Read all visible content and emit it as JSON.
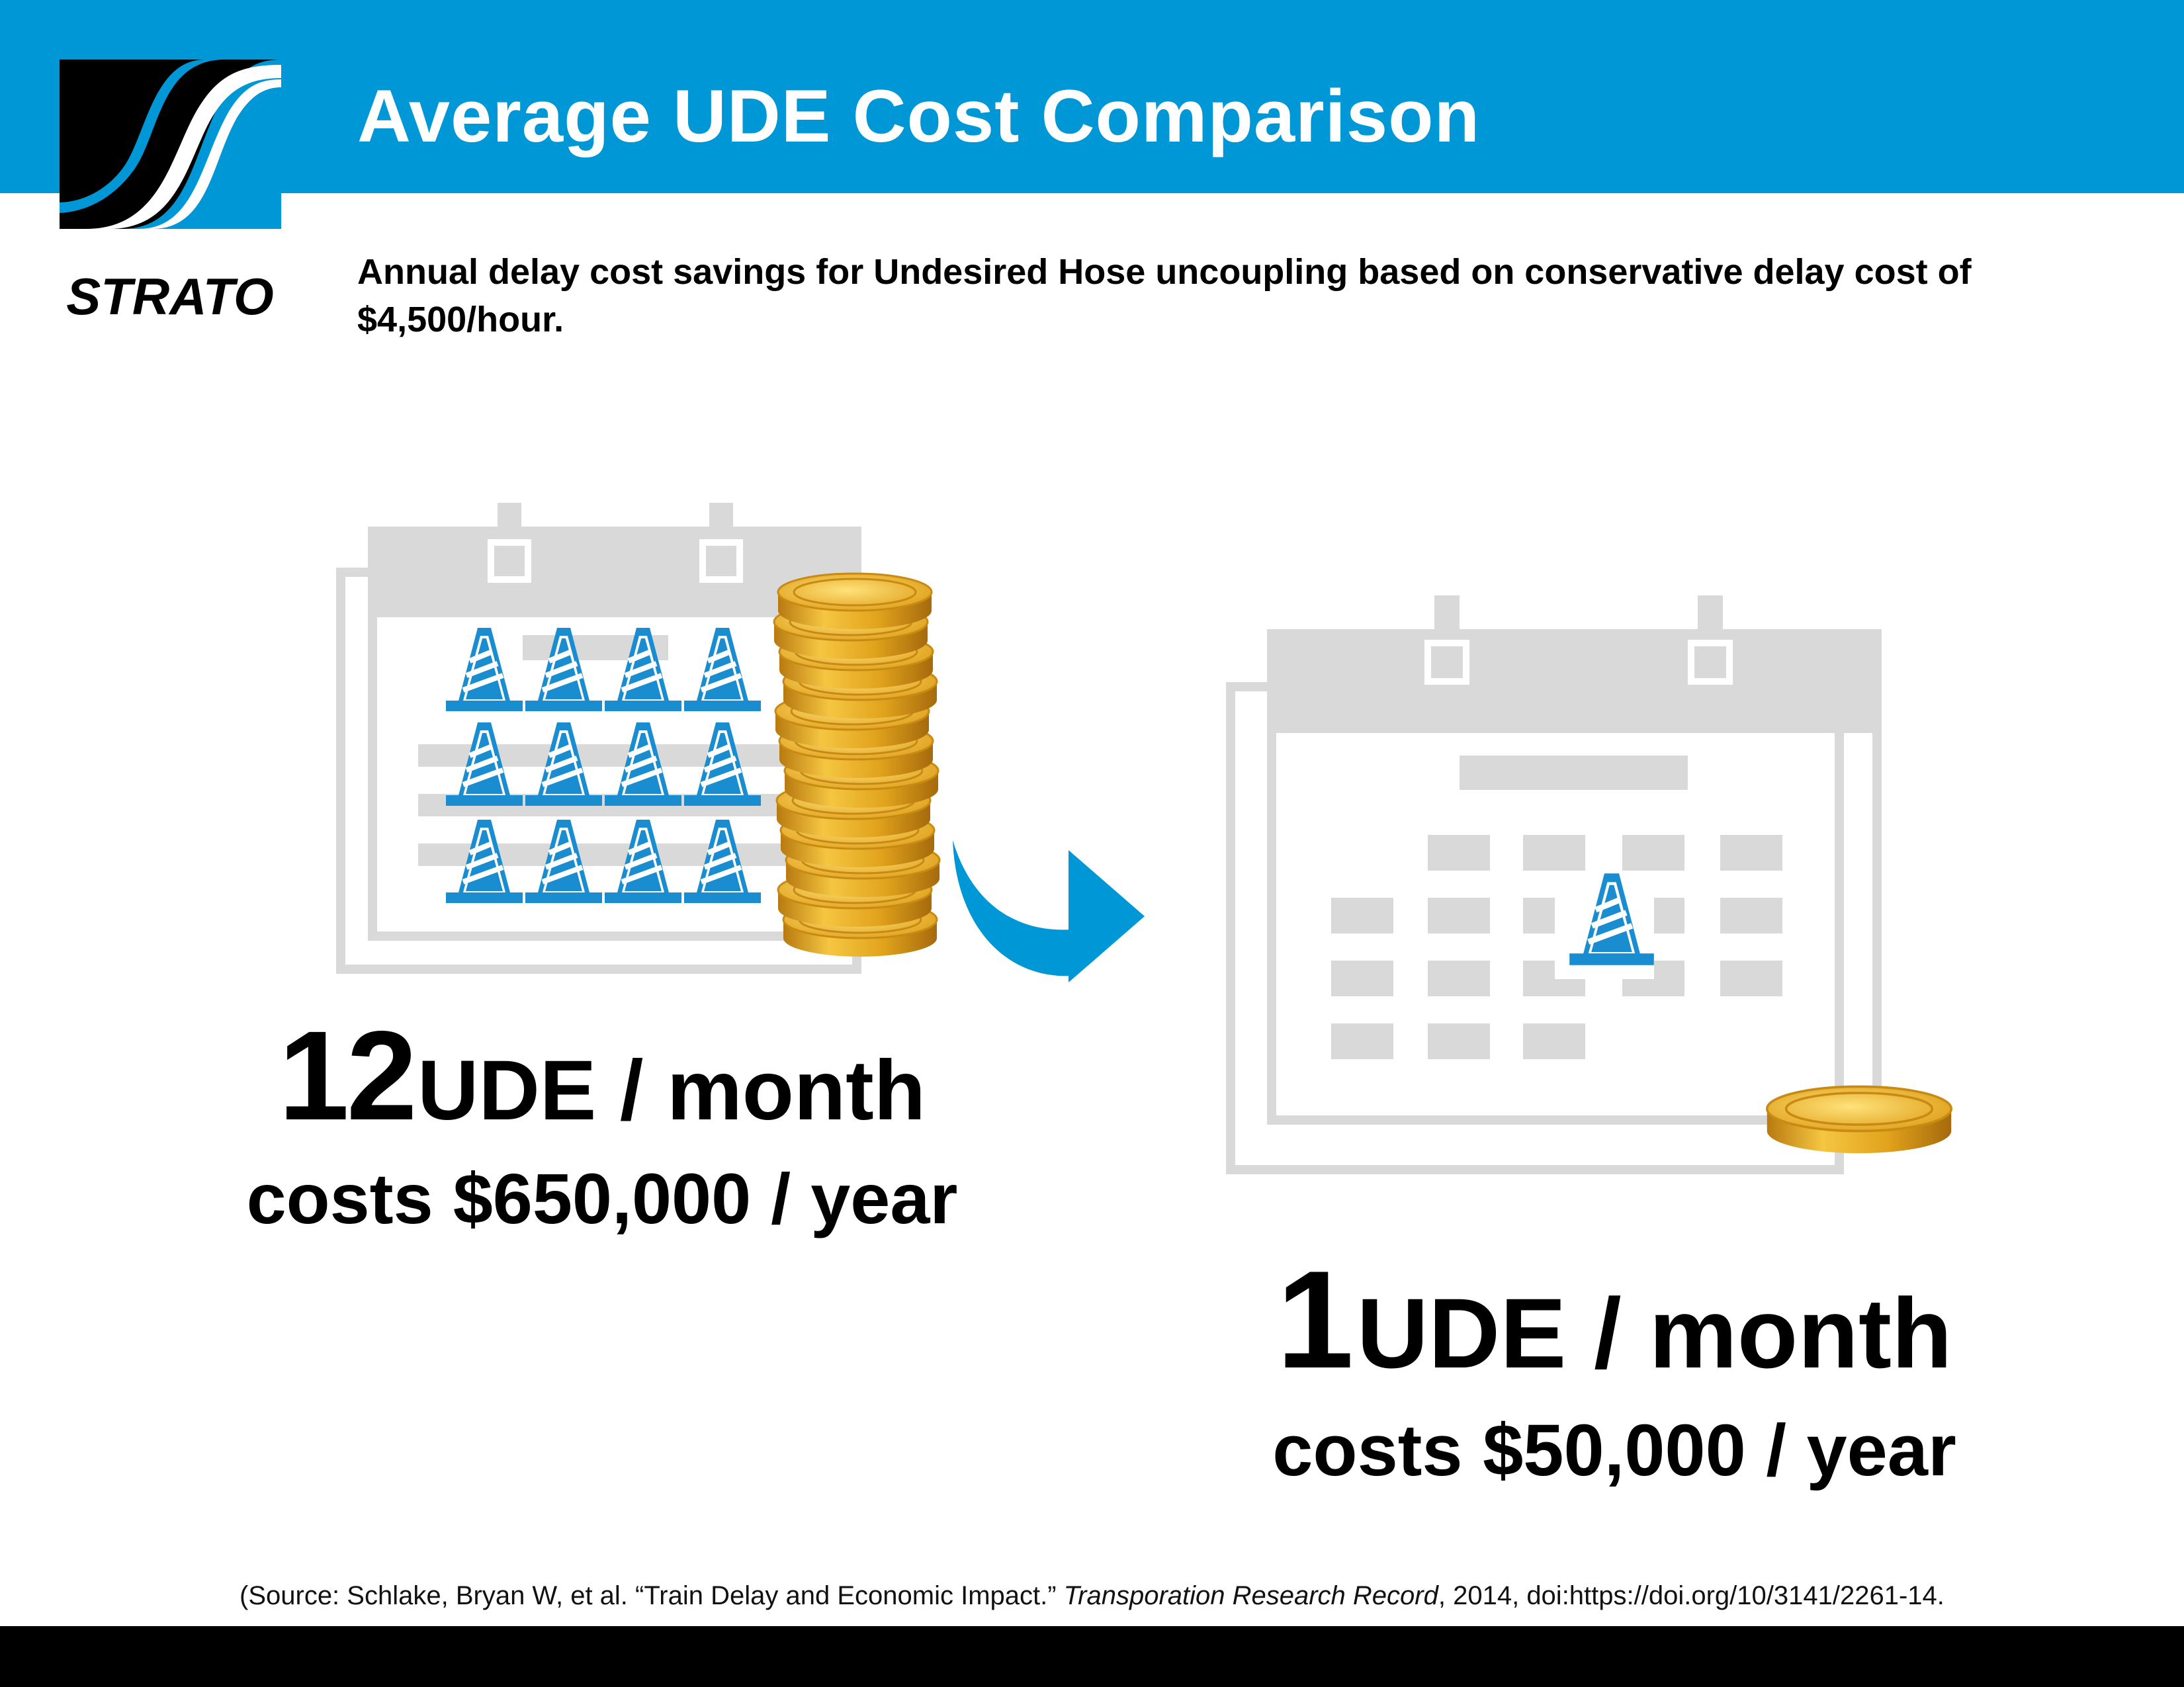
{
  "header": {
    "title": "Average UDE Cost Comparison",
    "background_color": "#0097D6"
  },
  "logo": {
    "wordmark": "STRATO",
    "icon": "strato-s-logo"
  },
  "subtitle": "Annual delay cost savings for Undesired Hose uncoupling based on conservative delay cost of $4,500/hour.",
  "before": {
    "count": "12",
    "unit": "UDE / month",
    "cost": "costs $650,000 / year",
    "cone_count": 12,
    "icon": "calendar-icon",
    "cone_icon": "traffic-cone-icon",
    "coins_icon": "coin-stack-icon"
  },
  "arrow_icon": "curved-arrow-right-icon",
  "after": {
    "count": "1",
    "unit": "UDE / month",
    "cost": "costs $50,000 / year",
    "cone_count": 1,
    "icon": "calendar-icon",
    "cone_icon": "traffic-cone-icon",
    "coins_icon": "single-coin-icon"
  },
  "source": {
    "prefix": "(Source: Schlake, Bryan W, et al. “Train Delay and Economic Impact.” ",
    "journal": "Transporation Research Record",
    "suffix": ", 2014, doi:https://doi.org/10/3141/2261-14."
  },
  "colors": {
    "brand_blue": "#0097D6",
    "cone_blue": "#1A8DD1",
    "calendar_gray": "#D9D9D9",
    "coin_gold": "#E7A81F",
    "footer": "#000000"
  }
}
